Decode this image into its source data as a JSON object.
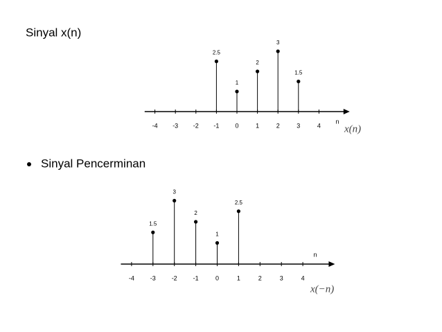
{
  "texts": {
    "heading": "Sinyal x(n)",
    "bullet": "Sinyal Pencerminan"
  },
  "chart_data": [
    {
      "type": "stem",
      "x": [
        -1,
        0,
        1,
        2,
        3
      ],
      "values": [
        2.5,
        1,
        2,
        3,
        1.5
      ],
      "color": "#000000",
      "xlim": [
        -4.5,
        5.5
      ],
      "xticks": [
        -4,
        -3,
        -2,
        -1,
        0,
        1,
        2,
        3,
        4
      ],
      "xlabel": "n",
      "label": "x(n)"
    },
    {
      "type": "stem",
      "x": [
        -3,
        -2,
        -1,
        0,
        1
      ],
      "values": [
        1.5,
        3,
        2,
        1,
        2.5
      ],
      "color": "#000000",
      "xlim": [
        -4.5,
        5.5
      ],
      "xticks": [
        -4,
        -3,
        -2,
        -1,
        0,
        1,
        2,
        3,
        4
      ],
      "xlabel": "n",
      "label": "x(−n)"
    }
  ]
}
